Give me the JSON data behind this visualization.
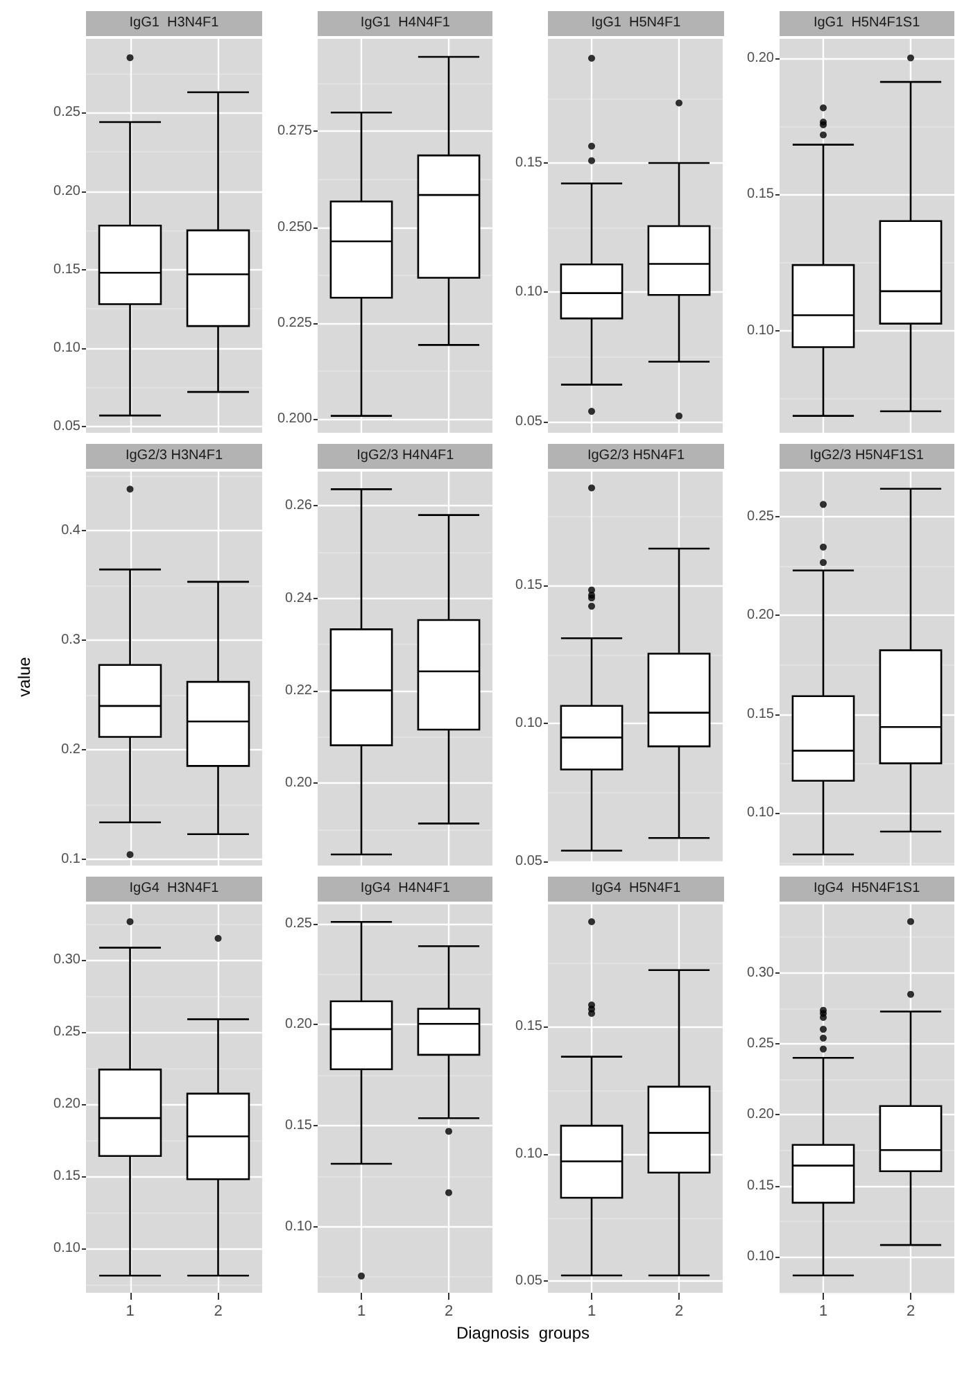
{
  "chart_data": [
    {
      "type": "box",
      "title": "IgG1  H3N4F1",
      "categories": [
        "1",
        "2"
      ],
      "tick_labels": "y",
      "grid": true,
      "ylim": [
        0.046,
        0.297
      ],
      "yticks": [
        {
          "value": 0.05,
          "label": "0.05"
        },
        {
          "value": 0.1,
          "label": "0.10"
        },
        {
          "value": 0.15,
          "label": "0.15"
        },
        {
          "value": 0.2,
          "label": "0.20"
        },
        {
          "value": 0.25,
          "label": "0.25"
        }
      ],
      "boxes": [
        {
          "low": 0.057,
          "q1": 0.128,
          "median": 0.148,
          "q3": 0.178,
          "high": 0.244,
          "outliers": [
            0.285
          ]
        },
        {
          "low": 0.072,
          "q1": 0.114,
          "median": 0.147,
          "q3": 0.175,
          "high": 0.263
        }
      ]
    },
    {
      "type": "box",
      "title": "IgG1  H4N4F1",
      "categories": [
        "1",
        "2"
      ],
      "tick_labels": "y",
      "grid": true,
      "ylim": [
        0.1964,
        0.2991
      ],
      "yticks": [
        {
          "value": 0.2,
          "label": "0.200"
        },
        {
          "value": 0.225,
          "label": "0.225"
        },
        {
          "value": 0.25,
          "label": "0.250"
        },
        {
          "value": 0.275,
          "label": "0.275"
        }
      ],
      "boxes": [
        {
          "low": 0.2008,
          "q1": 0.2316,
          "median": 0.2463,
          "q3": 0.2567,
          "high": 0.2799
        },
        {
          "low": 0.2193,
          "q1": 0.2368,
          "median": 0.2584,
          "q3": 0.2687,
          "high": 0.2944
        }
      ]
    },
    {
      "type": "box",
      "title": "IgG1  H5N4F1",
      "categories": [
        "1",
        "2"
      ],
      "tick_labels": "y",
      "grid": true,
      "ylim": [
        0.0457,
        0.198
      ],
      "yticks": [
        {
          "value": 0.05,
          "label": "0.05"
        },
        {
          "value": 0.1,
          "label": "0.10"
        },
        {
          "value": 0.15,
          "label": "0.15"
        }
      ],
      "boxes": [
        {
          "low": 0.0643,
          "q1": 0.0899,
          "median": 0.0997,
          "q3": 0.1108,
          "high": 0.1421,
          "outliers": [
            0.1905,
            0.1565,
            0.1509,
            0.054
          ]
        },
        {
          "low": 0.0732,
          "q1": 0.099,
          "median": 0.111,
          "q3": 0.1256,
          "high": 0.15,
          "outliers": [
            0.1732,
            0.0522
          ]
        }
      ]
    },
    {
      "type": "box",
      "title": "IgG1  H5N4F1S1",
      "categories": [
        "1",
        "2"
      ],
      "tick_labels": "y",
      "grid": true,
      "ylim": [
        0.0626,
        0.207
      ],
      "yticks": [
        {
          "value": 0.1,
          "label": "0.10"
        },
        {
          "value": 0.15,
          "label": "0.15"
        },
        {
          "value": 0.2,
          "label": "0.20"
        }
      ],
      "boxes": [
        {
          "low": 0.0688,
          "q1": 0.094,
          "median": 0.1057,
          "q3": 0.1241,
          "high": 0.1682,
          "outliers": [
            0.1817,
            0.1765,
            0.1755,
            0.1718
          ]
        },
        {
          "low": 0.0705,
          "q1": 0.1026,
          "median": 0.1145,
          "q3": 0.1402,
          "high": 0.1912,
          "outliers": [
            0.2
          ]
        }
      ]
    },
    {
      "type": "box",
      "title": "IgG2/3 H3N4F1",
      "ylabel": "value",
      "categories": [
        "1",
        "2"
      ],
      "tick_labels": "y",
      "grid": true,
      "ylim": [
        0.0946,
        0.454
      ],
      "yticks": [
        {
          "value": 0.1,
          "label": "0.1"
        },
        {
          "value": 0.2,
          "label": "0.2"
        },
        {
          "value": 0.3,
          "label": "0.3"
        },
        {
          "value": 0.4,
          "label": "0.4"
        }
      ],
      "boxes": [
        {
          "low": 0.134,
          "q1": 0.212,
          "median": 0.2402,
          "q3": 0.2776,
          "high": 0.3647,
          "outliers": [
            0.438,
            0.1046
          ]
        },
        {
          "low": 0.1232,
          "q1": 0.1855,
          "median": 0.2261,
          "q3": 0.2622,
          "high": 0.3535
        }
      ]
    },
    {
      "type": "box",
      "title": "IgG2/3 H4N4F1",
      "categories": [
        "1",
        "2"
      ],
      "tick_labels": "y",
      "grid": true,
      "ylim": [
        0.1822,
        0.2674
      ],
      "yticks": [
        {
          "value": 0.2,
          "label": "0.20"
        },
        {
          "value": 0.22,
          "label": "0.22"
        },
        {
          "value": 0.24,
          "label": "0.24"
        },
        {
          "value": 0.26,
          "label": "0.26"
        }
      ],
      "boxes": [
        {
          "low": 0.1846,
          "q1": 0.2082,
          "median": 0.2201,
          "q3": 0.2333,
          "high": 0.2636
        },
        {
          "low": 0.1913,
          "q1": 0.2116,
          "median": 0.2242,
          "q3": 0.2353,
          "high": 0.258
        }
      ]
    },
    {
      "type": "box",
      "title": "IgG2/3 H5N4F1",
      "categories": [
        "1",
        "2"
      ],
      "tick_labels": "y",
      "grid": true,
      "ylim": [
        0.0498,
        0.1913
      ],
      "yticks": [
        {
          "value": 0.05,
          "label": "0.05"
        },
        {
          "value": 0.1,
          "label": "0.10"
        },
        {
          "value": 0.15,
          "label": "0.15"
        }
      ],
      "boxes": [
        {
          "low": 0.0539,
          "q1": 0.0833,
          "median": 0.0949,
          "q3": 0.1064,
          "high": 0.1309,
          "outliers": [
            0.1854,
            0.1484,
            0.1465,
            0.1455,
            0.1425
          ]
        },
        {
          "low": 0.0585,
          "q1": 0.0917,
          "median": 0.1039,
          "q3": 0.1253,
          "high": 0.1634
        }
      ]
    },
    {
      "type": "box",
      "title": "IgG2/3 H5N4F1S1",
      "categories": [
        "1",
        "2"
      ],
      "tick_labels": "y",
      "grid": true,
      "ylim": [
        0.0735,
        0.2728
      ],
      "yticks": [
        {
          "value": 0.1,
          "label": "0.10"
        },
        {
          "value": 0.15,
          "label": "0.15"
        },
        {
          "value": 0.2,
          "label": "0.20"
        },
        {
          "value": 0.25,
          "label": "0.25"
        }
      ],
      "boxes": [
        {
          "low": 0.0791,
          "q1": 0.1164,
          "median": 0.1316,
          "q3": 0.1592,
          "high": 0.2228,
          "outliers": [
            0.2562,
            0.2346,
            0.2268
          ]
        },
        {
          "low": 0.0907,
          "q1": 0.1252,
          "median": 0.1436,
          "q3": 0.1824,
          "high": 0.2641
        }
      ]
    },
    {
      "type": "box",
      "title": "IgG4  H3N4F1",
      "categories": [
        "1",
        "2"
      ],
      "grid": true,
      "ylim": [
        0.0691,
        0.3386
      ],
      "yticks": [
        {
          "value": 0.1,
          "label": "0.10"
        },
        {
          "value": 0.15,
          "label": "0.15"
        },
        {
          "value": 0.2,
          "label": "0.20"
        },
        {
          "value": 0.25,
          "label": "0.25"
        },
        {
          "value": 0.3,
          "label": "0.30"
        }
      ],
      "boxes": [
        {
          "low": 0.081,
          "q1": 0.164,
          "median": 0.1903,
          "q3": 0.224,
          "high": 0.3086,
          "outliers": [
            0.3266
          ]
        },
        {
          "low": 0.081,
          "q1": 0.1479,
          "median": 0.1776,
          "q3": 0.2073,
          "high": 0.2589,
          "outliers": [
            0.315
          ]
        }
      ]
    },
    {
      "type": "box",
      "title": "IgG4  H4N4F1",
      "xlabel": "Diagnosis  groups",
      "categories": [
        "1",
        "2"
      ],
      "grid": true,
      "ylim": [
        0.0672,
        0.2596
      ],
      "yticks": [
        {
          "value": 0.1,
          "label": "0.10"
        },
        {
          "value": 0.15,
          "label": "0.15"
        },
        {
          "value": 0.2,
          "label": "0.20"
        },
        {
          "value": 0.25,
          "label": "0.25"
        }
      ],
      "boxes": [
        {
          "low": 0.1311,
          "q1": 0.1779,
          "median": 0.1978,
          "q3": 0.2116,
          "high": 0.2509,
          "outliers": [
            0.0755
          ]
        },
        {
          "low": 0.1537,
          "q1": 0.1851,
          "median": 0.2004,
          "q3": 0.2079,
          "high": 0.2389,
          "outliers": [
            0.1472,
            0.1168
          ]
        }
      ]
    },
    {
      "type": "box",
      "title": "IgG4  H5N4F1",
      "categories": [
        "1",
        "2"
      ],
      "grid": true,
      "ylim": [
        0.0455,
        0.198
      ],
      "yticks": [
        {
          "value": 0.05,
          "label": "0.05"
        },
        {
          "value": 0.1,
          "label": "0.10"
        },
        {
          "value": 0.15,
          "label": "0.15"
        }
      ],
      "boxes": [
        {
          "low": 0.0523,
          "q1": 0.0828,
          "median": 0.0971,
          "q3": 0.1111,
          "high": 0.1382,
          "outliers": [
            0.1912,
            0.1585,
            0.1569,
            0.1552
          ]
        },
        {
          "low": 0.0523,
          "q1": 0.0927,
          "median": 0.1083,
          "q3": 0.1264,
          "high": 0.1722
        }
      ]
    },
    {
      "type": "box",
      "title": "IgG4  H5N4F1S1",
      "categories": [
        "1",
        "2"
      ],
      "grid": true,
      "ylim": [
        0.0748,
        0.3481
      ],
      "yticks": [
        {
          "value": 0.1,
          "label": "0.10"
        },
        {
          "value": 0.15,
          "label": "0.15"
        },
        {
          "value": 0.2,
          "label": "0.20"
        },
        {
          "value": 0.25,
          "label": "0.25"
        },
        {
          "value": 0.3,
          "label": "0.30"
        }
      ],
      "boxes": [
        {
          "low": 0.087,
          "q1": 0.1382,
          "median": 0.1643,
          "q3": 0.1789,
          "high": 0.2401,
          "outliers": [
            0.2736,
            0.2714,
            0.2686,
            0.2602,
            0.254,
            0.2463
          ]
        },
        {
          "low": 0.1084,
          "q1": 0.1603,
          "median": 0.1752,
          "q3": 0.2062,
          "high": 0.2727,
          "outliers": [
            0.336,
            0.2848
          ]
        }
      ]
    }
  ]
}
